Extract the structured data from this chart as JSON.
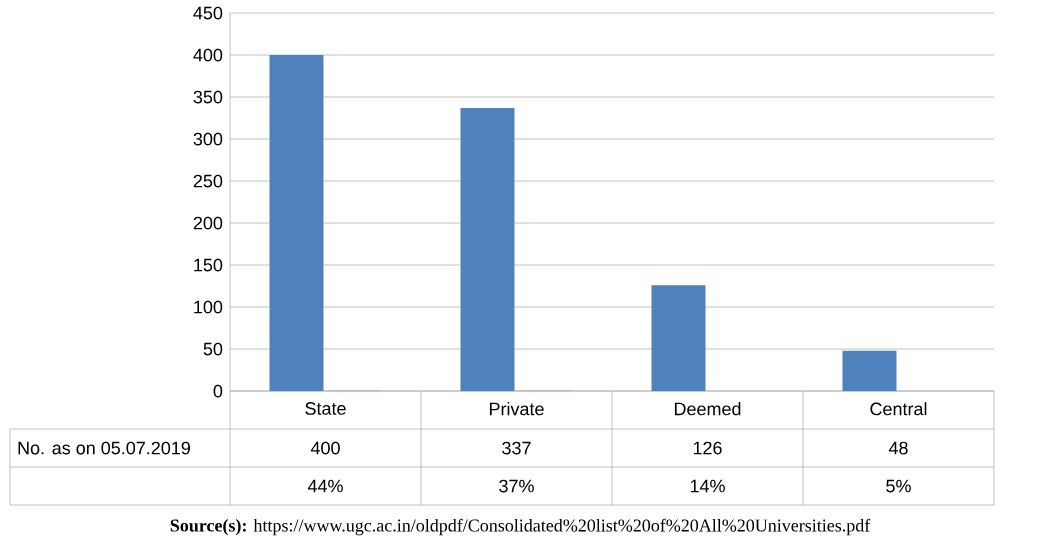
{
  "chart_data": {
    "type": "bar",
    "categories": [
      "State",
      "Private",
      "Deemed",
      "Central"
    ],
    "series": [
      {
        "name": "No. as on 05.07.2019",
        "color": "#4f81bd",
        "values": [
          400,
          337,
          126,
          48
        ],
        "value_labels": [
          "400",
          "337",
          "126",
          "48"
        ]
      },
      {
        "color": "#c0504d",
        "values": [
          0.44,
          0.37,
          0.14,
          0.05
        ],
        "value_labels": [
          "44%",
          "37%",
          "14%",
          "5%"
        ]
      }
    ],
    "ylim": [
      0,
      450
    ],
    "yticks": [
      0,
      50,
      100,
      150,
      200,
      250,
      300,
      350,
      400,
      450
    ],
    "grid": "y",
    "legend": false,
    "annotations": [
      "**Source(s):** https://www.ugc.ac.in/oldpdf/Consolidated%20list%20of%20All%20Universities.pdf"
    ]
  }
}
